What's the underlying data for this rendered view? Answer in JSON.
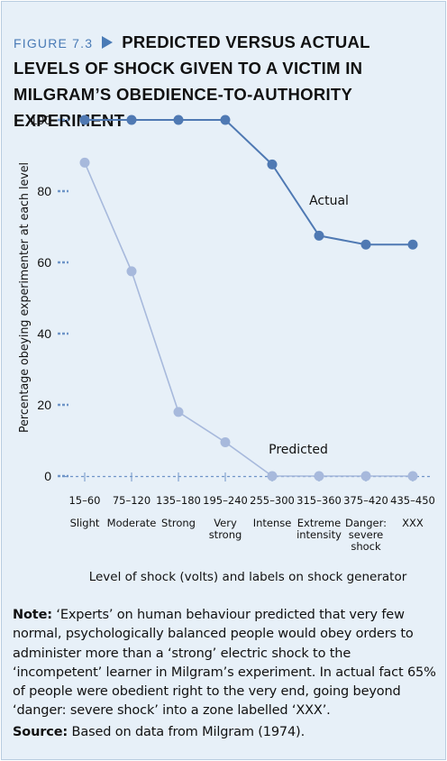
{
  "figure": {
    "label": "FIGURE 7.3",
    "title": "PREDICTED VERSUS ACTUAL LEVELS OF SHOCK GIVEN TO A VICTIM IN MILGRAM’S OBEDIENCE-TO-AUTHORITY EXPERIMENT"
  },
  "note": {
    "label": "Note:",
    "text": "‘Experts’ on human behaviour predicted that very few normal, psychologically balanced people would obey orders to administer more than a ‘strong’ electric shock to the ‘incompetent’ learner in Milgram’s experiment. In actual fact 65% of people were obedient right to the very end, going beyond ‘danger: severe shock’ into a zone labelled ‘XXX’."
  },
  "source": {
    "label": "Source:",
    "text": "Based on data from Milgram (1974)."
  },
  "colors": {
    "background": "#e7f0f8",
    "actual": "#4f79b3",
    "predicted": "#a7b9dc",
    "axis": "#6f95c8",
    "accent": "#4a7bb6"
  },
  "chart_data": {
    "type": "line",
    "xlabel": "Level of shock (volts) and labels on shock generator",
    "ylabel": "Percentage obeying experimenter at each level",
    "ylim": [
      0,
      100
    ],
    "yticks": [
      0,
      20,
      40,
      60,
      80,
      100
    ],
    "categories": [
      "15–60",
      "75–120",
      "135–180",
      "195–240",
      "255–300",
      "315–360",
      "375–420",
      "435–450"
    ],
    "category_labels": [
      [
        "Slight"
      ],
      [
        "Moderate"
      ],
      [
        "Strong"
      ],
      [
        "Very",
        "strong"
      ],
      [
        "Intense"
      ],
      [
        "Extreme",
        "intensity"
      ],
      [
        "Danger:",
        "severe",
        "shock"
      ],
      [
        "XXX"
      ]
    ],
    "series": [
      {
        "name": "Actual",
        "values": [
          100,
          100,
          100,
          100,
          87.5,
          67.5,
          65,
          65
        ]
      },
      {
        "name": "Predicted",
        "values": [
          88,
          57.5,
          18,
          9.5,
          0,
          0,
          0,
          0
        ]
      }
    ],
    "grid": false
  }
}
